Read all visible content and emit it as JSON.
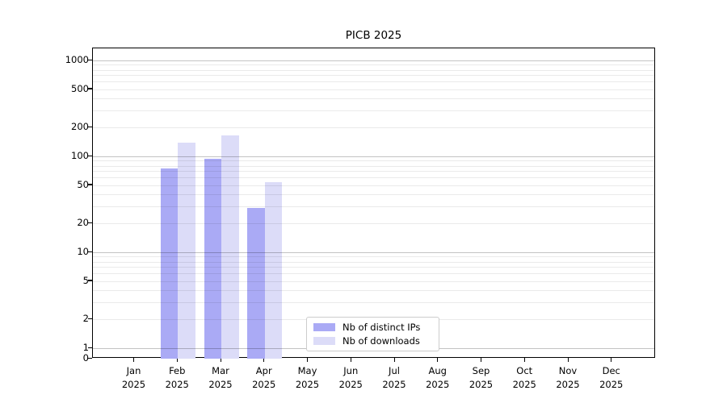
{
  "title": "PICB 2025",
  "colors": {
    "ips_bar": "#aaaaf5",
    "downloads_bar": "#dcdcf8",
    "major_grid": "#c3c3c3",
    "minor_grid": "#ebebeb",
    "axis": "#000000",
    "legend_border": "#cccccc"
  },
  "chart_data": {
    "type": "bar",
    "title": "PICB 2025",
    "y_scale": "log",
    "ylim": [
      0,
      1000
    ],
    "y_ticks": [
      0,
      1,
      2,
      5,
      10,
      20,
      50,
      100,
      200,
      500,
      1000
    ],
    "grid": "both (major and minor log gridlines, horizontal only)",
    "legend_position": "lower center inside plot",
    "x_month_labels": [
      "Jan",
      "Feb",
      "Mar",
      "Apr",
      "May",
      "Jun",
      "Jul",
      "Aug",
      "Sep",
      "Oct",
      "Nov",
      "Dec"
    ],
    "x_year": "2025",
    "categories": [
      "Jan 2025",
      "Feb 2025",
      "Mar 2025",
      "Apr 2025",
      "May 2025",
      "Jun 2025",
      "Jul 2025",
      "Aug 2025",
      "Sep 2025",
      "Oct 2025",
      "Nov 2025",
      "Dec 2025"
    ],
    "series": [
      {
        "name": "Nb of distinct IPs",
        "color_key": "ips_bar",
        "values": [
          0,
          75,
          95,
          29,
          0,
          0,
          0,
          0,
          0,
          0,
          0,
          0
        ]
      },
      {
        "name": "Nb of downloads",
        "color_key": "downloads_bar",
        "values": [
          0,
          140,
          165,
          54,
          0,
          0,
          0,
          0,
          0,
          0,
          0,
          0
        ]
      }
    ]
  }
}
